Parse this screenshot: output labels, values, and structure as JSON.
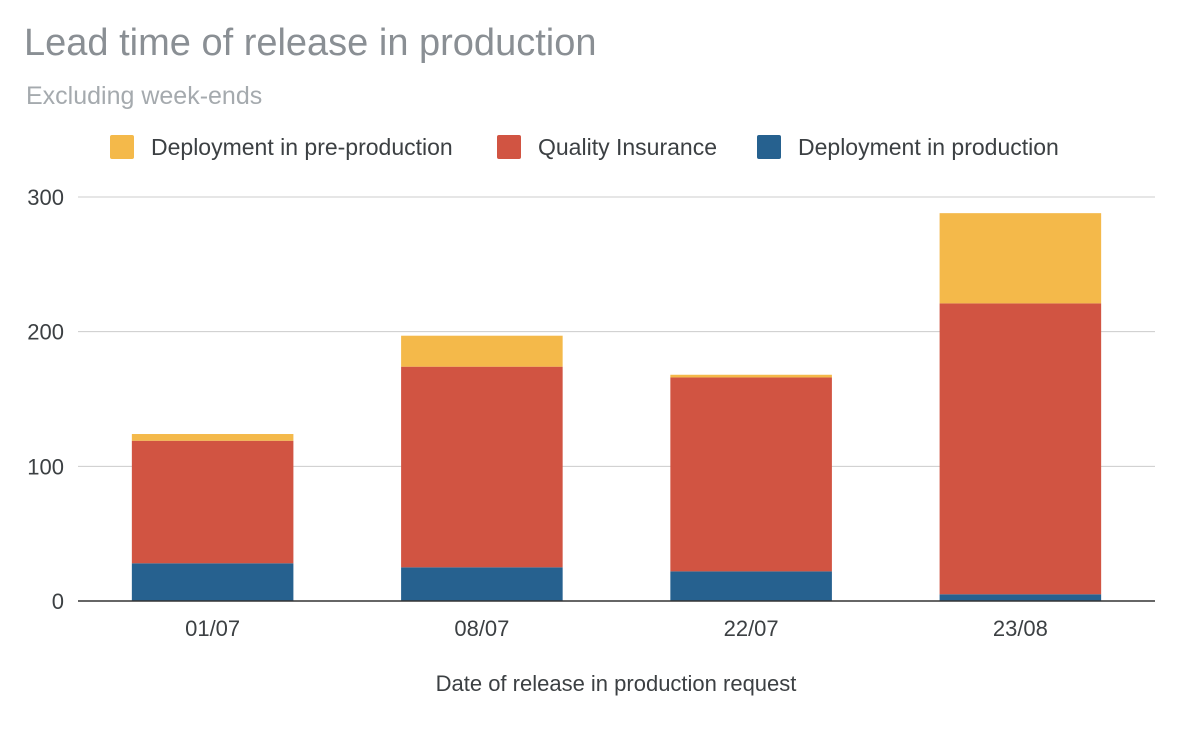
{
  "chart_data": {
    "type": "bar",
    "stacked": true,
    "title": "Lead time of release in production",
    "subtitle": "Excluding week-ends",
    "xlabel": "Date of release in production request",
    "ylabel": "",
    "categories": [
      "01/07",
      "08/07",
      "22/07",
      "23/08"
    ],
    "series": [
      {
        "name": "Deployment in production",
        "color": "#26618f",
        "values": [
          28,
          25,
          22,
          5
        ]
      },
      {
        "name": "Quality Insurance",
        "color": "#d15442",
        "values": [
          91,
          149,
          144,
          216
        ]
      },
      {
        "name": "Deployment in pre-production",
        "color": "#f4b94a",
        "values": [
          5,
          23,
          2,
          67
        ]
      }
    ],
    "legend_order": [
      2,
      1,
      0
    ],
    "ylim": [
      0,
      300
    ],
    "yticks": [
      0,
      100,
      200,
      300
    ],
    "grid": true,
    "legend_position": "top"
  }
}
